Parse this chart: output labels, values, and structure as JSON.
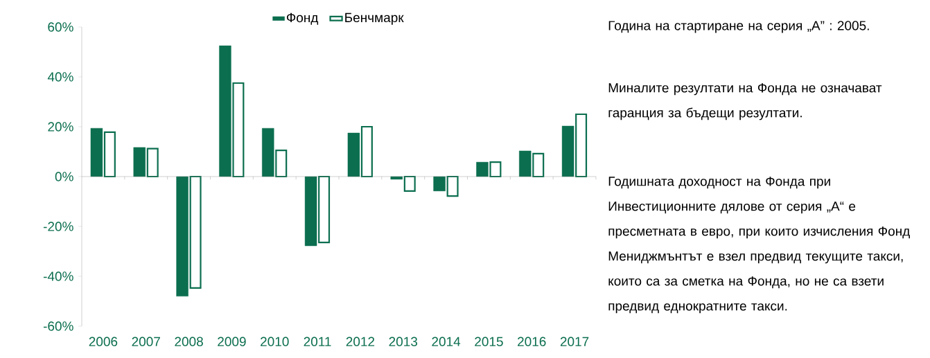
{
  "chart_data": {
    "type": "bar",
    "categories": [
      "2006",
      "2007",
      "2008",
      "2009",
      "2010",
      "2011",
      "2012",
      "2013",
      "2014",
      "2015",
      "2016",
      "2017"
    ],
    "series": [
      {
        "name": "Фонд",
        "color": "#0b6e4f",
        "values": [
          19.4,
          11.7,
          -48,
          52.5,
          19.4,
          -27.8,
          17.5,
          -1.1,
          -5.8,
          5.8,
          10.3,
          20.3
        ]
      },
      {
        "name": "Бенчмарк",
        "color": "#0b6e4f",
        "values": [
          17.8,
          11.2,
          -44.7,
          37.5,
          10.5,
          -26.4,
          20,
          -5.8,
          -7.8,
          5.8,
          9.2,
          25
        ]
      }
    ],
    "ylim": [
      -60,
      60
    ],
    "yticks": [
      {
        "value": -60,
        "label": "-60%"
      },
      {
        "value": -40,
        "label": "-40%"
      },
      {
        "value": -20,
        "label": "-20%"
      },
      {
        "value": 0,
        "label": "0%"
      },
      {
        "value": 20,
        "label": "20%"
      },
      {
        "value": 40,
        "label": "40%"
      },
      {
        "value": 60,
        "label": "60%"
      }
    ],
    "legend": "top",
    "annotations": [
      "Година на стартиране на серия „А” : 2005.",
      "Миналите резултати на Фонда не означават гаранция за бъдещи резултати.",
      "Годишната доходност на Фонда при Инвестиционните дялове от серия „А“ е  пресметната в евро, при които изчисления Фонд Мениджмънтът е взел предвид текущите такси, които са  за сметка на Фонда, но не са взети предвид еднократните такси."
    ]
  }
}
